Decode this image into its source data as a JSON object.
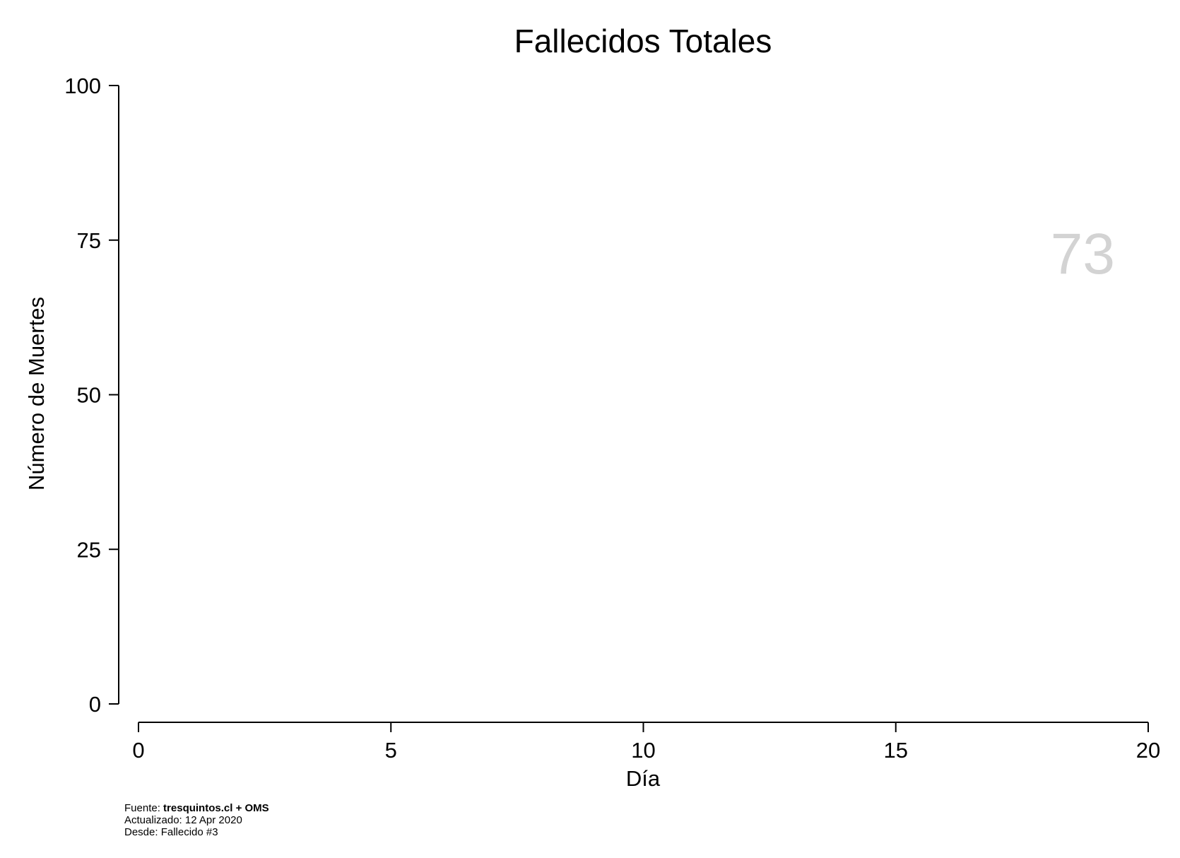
{
  "chart_data": {
    "type": "line",
    "title": "Fallecidos Totales",
    "xlabel": "Día",
    "ylabel": "Número de Muertes",
    "xlim": [
      0,
      20
    ],
    "ylim": [
      0,
      100
    ],
    "x_ticks": [
      0,
      5,
      10,
      15,
      20
    ],
    "y_ticks": [
      0,
      25,
      50,
      75,
      100
    ],
    "series": [],
    "current_value_label": "73",
    "grid": false
  },
  "footer": {
    "source_prefix": "Fuente: ",
    "source_name": "tresquintos.cl + OMS",
    "updated": "Actualizado: 12 Apr 2020",
    "since": "Desde: Fallecido #3"
  }
}
